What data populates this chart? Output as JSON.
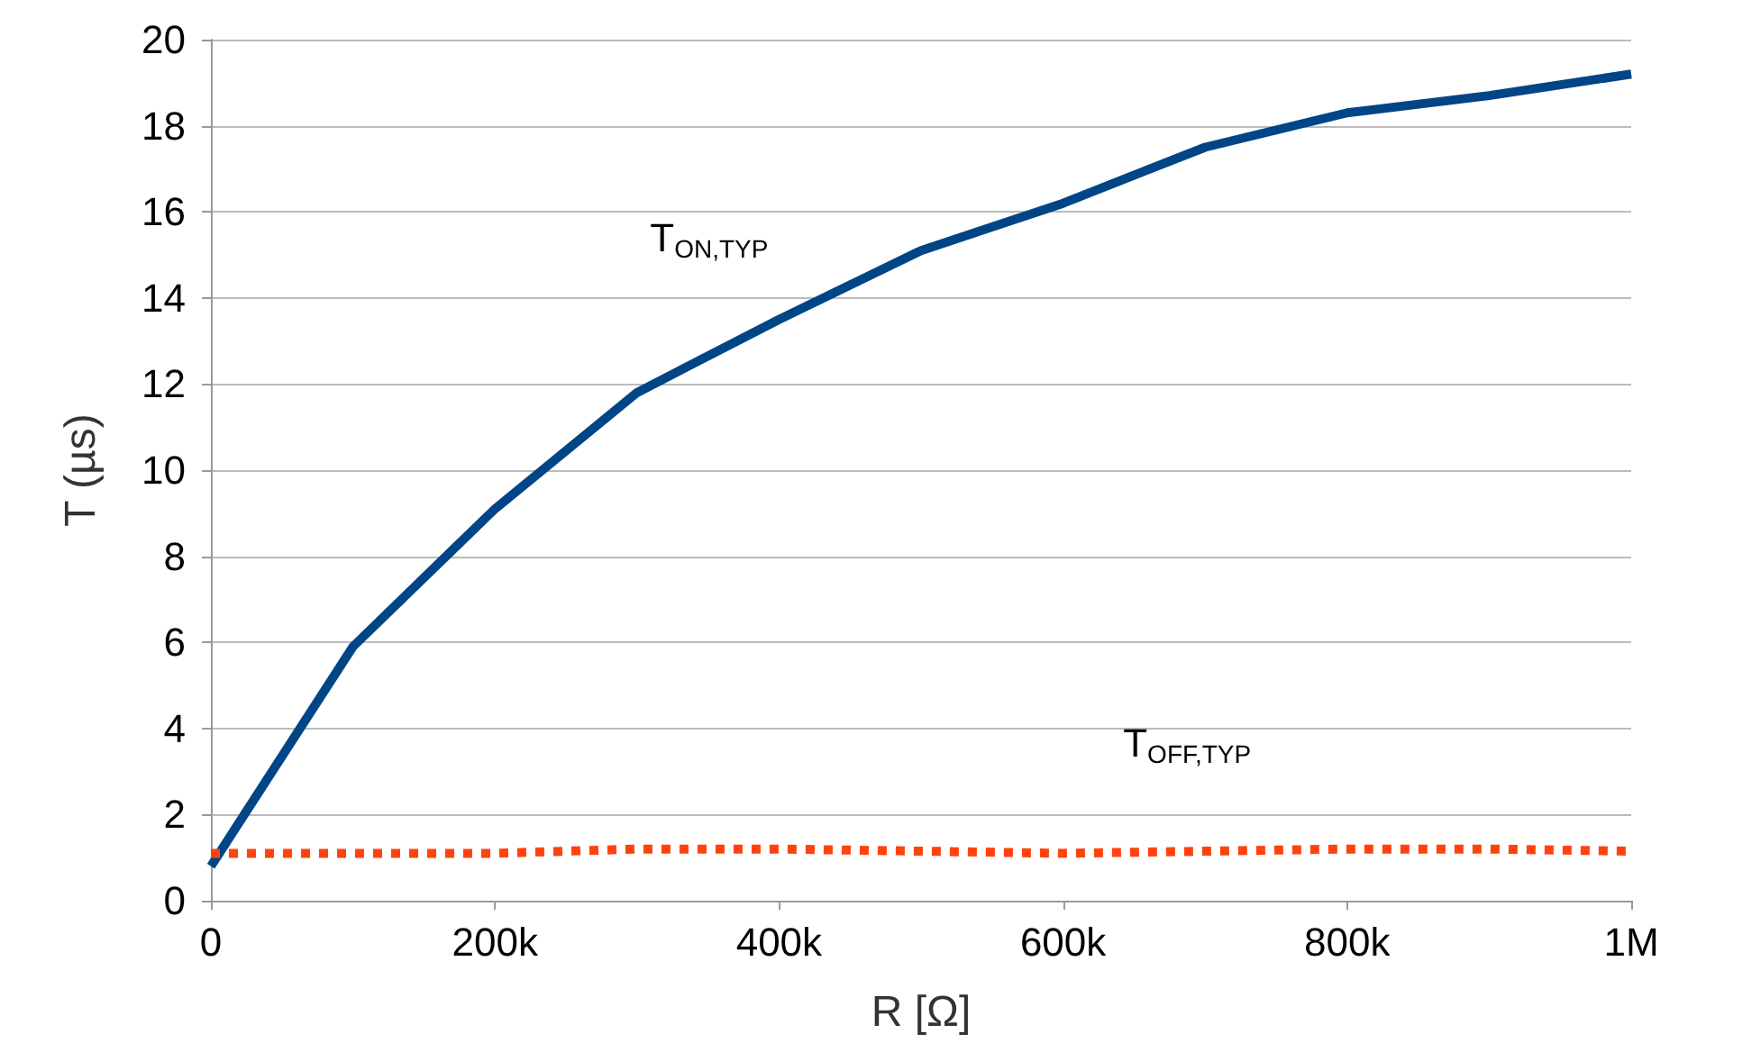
{
  "chart_data": {
    "type": "line",
    "xlabel": "R [Ω]",
    "ylabel": "T (µs)",
    "x": [
      0,
      100000,
      200000,
      300000,
      400000,
      500000,
      600000,
      700000,
      800000,
      900000,
      1000000
    ],
    "series": [
      {
        "name": "T$_{ON,TYP}$",
        "color": "#004586",
        "line_style": "solid",
        "values": [
          0.8,
          5.9,
          9.1,
          11.8,
          13.5,
          15.1,
          16.2,
          17.5,
          18.3,
          18.7,
          19.2
        ]
      },
      {
        "name": "T$_{OFF,TYP}$",
        "color": "#ff420e",
        "line_style": "dotted",
        "values": [
          1.1,
          1.1,
          1.1,
          1.2,
          1.2,
          1.15,
          1.1,
          1.15,
          1.2,
          1.2,
          1.15
        ]
      }
    ],
    "xlim": [
      0,
      1000000
    ],
    "xticks": [
      0,
      {
        "value": 200000,
        "label": "200k"
      },
      {
        "value": 400000,
        "label": "400k"
      },
      {
        "value": 600000,
        "label": "600k"
      },
      {
        "value": 800000,
        "label": "800k"
      },
      {
        "value": 1000000,
        "label": "1M"
      }
    ],
    "ylim": [
      0,
      20
    ],
    "yticks": [
      0,
      2,
      4,
      6,
      8,
      10,
      12,
      14,
      16,
      18,
      20
    ],
    "grid": "y",
    "marker": "none"
  }
}
